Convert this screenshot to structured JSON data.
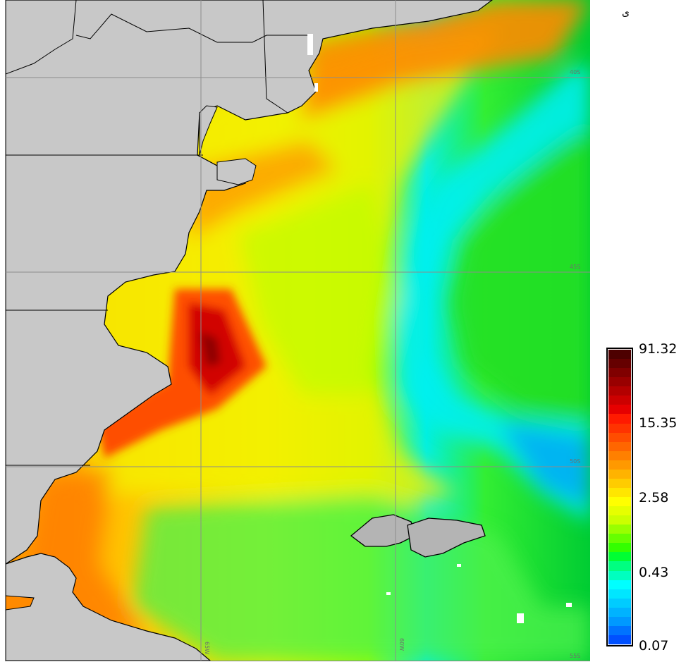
{
  "map": {
    "lat_labels": [
      "40S",
      "45S",
      "50S",
      "55S"
    ],
    "lon_labels": [
      "65W",
      "60W"
    ],
    "land_color": "#c8c8c8",
    "grid_color": "#8c8c8c",
    "coast_color": "#000000"
  },
  "colorbar": {
    "ticks": [
      "91.32",
      "15.35",
      "2.58",
      "0.43",
      "0.07"
    ],
    "scale": "log",
    "colors": [
      "#4d0000",
      "#660000",
      "#800000",
      "#990000",
      "#b30000",
      "#cc0000",
      "#e60000",
      "#ff1a00",
      "#ff3300",
      "#ff4d00",
      "#ff6600",
      "#ff8000",
      "#ff9900",
      "#ffb300",
      "#ffcc00",
      "#ffe600",
      "#ffff00",
      "#e6ff00",
      "#ccff00",
      "#99ff00",
      "#66ff00",
      "#33ff00",
      "#00ff33",
      "#00ff80",
      "#00ffbf",
      "#00ffff",
      "#00e6ff",
      "#00ccff",
      "#00b3ff",
      "#0099ff",
      "#0073ff",
      "#0050ff"
    ]
  },
  "corner_text": "ی"
}
